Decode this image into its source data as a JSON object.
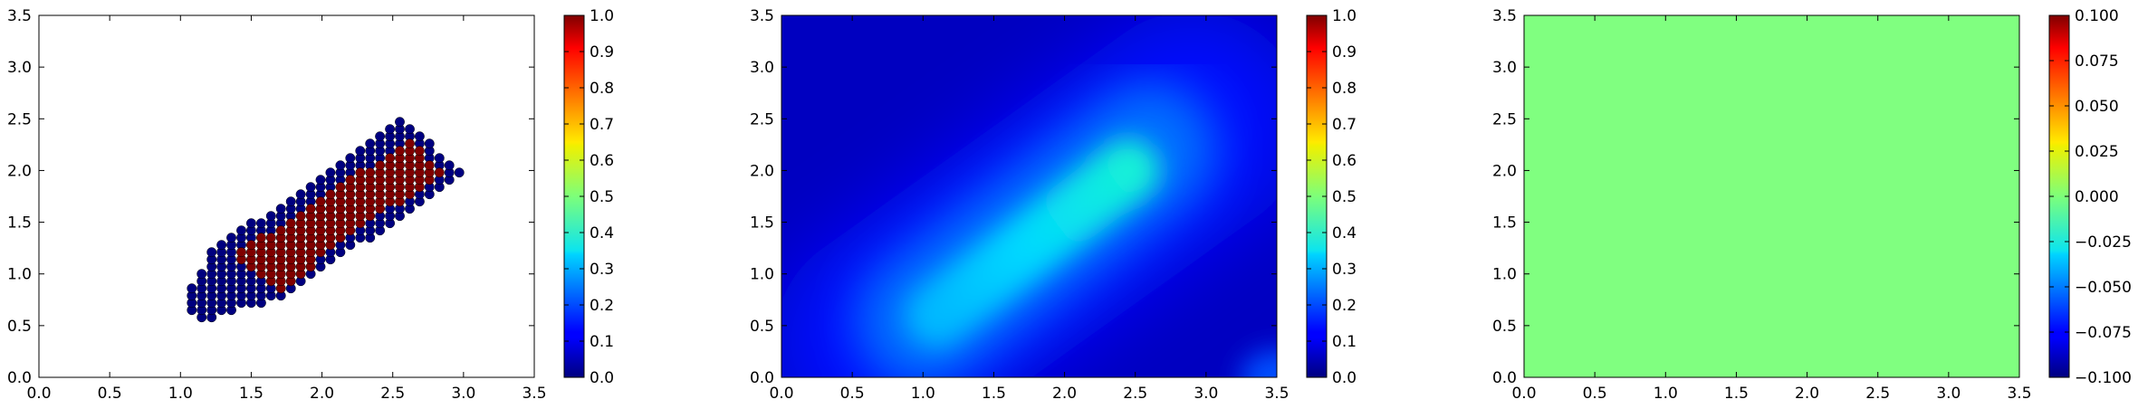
{
  "chart_data": [
    {
      "type": "scatter",
      "title": "",
      "xlabel": "",
      "ylabel": "",
      "xlim": [
        0.0,
        3.5
      ],
      "ylim": [
        0.0,
        3.5
      ],
      "x_ticks": [
        "0.0",
        "0.5",
        "1.0",
        "1.5",
        "2.0",
        "2.5",
        "3.0",
        "3.5"
      ],
      "y_ticks": [
        "0.0",
        "0.5",
        "1.0",
        "1.5",
        "2.0",
        "2.5",
        "3.0",
        "3.5"
      ],
      "grid": false,
      "colormap": "jet",
      "marker_values": [
        0.0,
        1.0
      ],
      "region": {
        "description_values": "two classes of points along a diagonal band",
        "band_start": [
          1.1,
          0.65
        ],
        "band_end": [
          2.75,
          2.2
        ],
        "outer_class_value": 0.0,
        "inner_class_value": 1.0
      },
      "colorbar": {
        "range": [
          0.0,
          1.0
        ],
        "ticks": [
          "0.0",
          "0.1",
          "0.2",
          "0.3",
          "0.4",
          "0.5",
          "0.6",
          "0.7",
          "0.8",
          "0.9",
          "1.0"
        ]
      }
    },
    {
      "type": "heatmap",
      "title": "",
      "xlabel": "",
      "ylabel": "",
      "xlim": [
        0.0,
        3.5
      ],
      "ylim": [
        0.0,
        3.5
      ],
      "x_ticks": [
        "0.0",
        "0.5",
        "1.0",
        "1.5",
        "2.0",
        "2.5",
        "3.0",
        "3.5"
      ],
      "y_ticks": [
        "0.0",
        "0.5",
        "1.0",
        "1.5",
        "2.0",
        "2.5",
        "3.0",
        "3.5"
      ],
      "grid": false,
      "colormap": "jet",
      "peak_value": 0.4,
      "ridge_start": [
        1.1,
        0.6
      ],
      "ridge_end": [
        2.45,
        2.0
      ],
      "colorbar": {
        "range": [
          0.0,
          1.0
        ],
        "ticks": [
          "0.0",
          "0.1",
          "0.2",
          "0.3",
          "0.4",
          "0.5",
          "0.6",
          "0.7",
          "0.8",
          "0.9",
          "1.0"
        ]
      }
    },
    {
      "type": "heatmap",
      "title": "",
      "xlabel": "",
      "ylabel": "",
      "xlim": [
        0.0,
        3.5
      ],
      "ylim": [
        0.0,
        3.5
      ],
      "x_ticks": [
        "0.0",
        "0.5",
        "1.0",
        "1.5",
        "2.0",
        "2.5",
        "3.0",
        "3.5"
      ],
      "y_ticks": [
        "0.0",
        "0.5",
        "1.0",
        "1.5",
        "2.0",
        "2.5",
        "3.0",
        "3.5"
      ],
      "grid": false,
      "colormap": "jet",
      "constant_value": 0.0,
      "colorbar": {
        "range": [
          -0.1,
          0.1
        ],
        "ticks": [
          "−0.100",
          "−0.075",
          "−0.050",
          "−0.025",
          "0.000",
          "0.025",
          "0.050",
          "0.075",
          "0.100"
        ]
      }
    }
  ]
}
